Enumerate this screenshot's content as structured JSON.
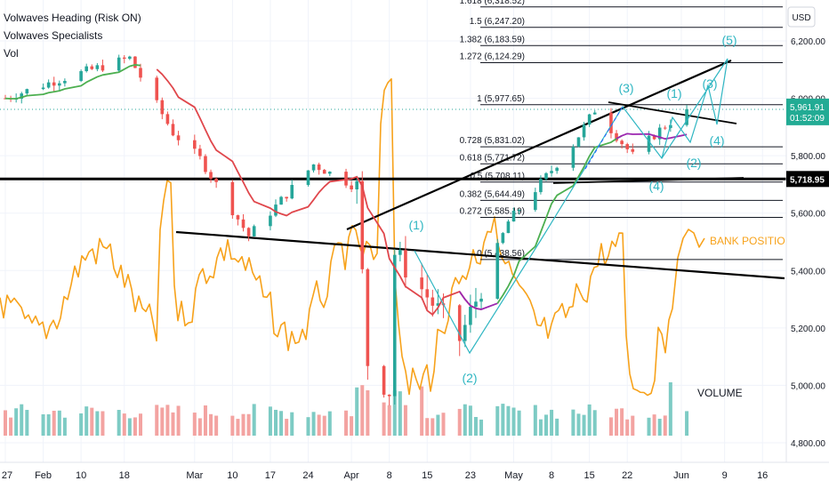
{
  "legend": {
    "line1": "Volwaves Heading (Risk ON)",
    "line2": "Volwaves Specialists",
    "line3": "Vol"
  },
  "price_axis": {
    "currency": "USD",
    "ticks": [
      "6,200.00",
      "6,000.00",
      "5,800.00",
      "5,600.00",
      "5,400.00",
      "5,200.00",
      "5,000.00",
      "4,800.00"
    ],
    "last_price": "5,961.91",
    "countdown": "01:52:09",
    "level_price": "5,718.95",
    "last_price_color": "#22ab94"
  },
  "time_axis": {
    "ticks": [
      "27",
      "Feb",
      "10",
      "18",
      "Mar",
      "10",
      "17",
      "24",
      "Apr",
      "8",
      "15",
      "23",
      "May",
      "8",
      "15",
      "22",
      "Jun",
      "9",
      "16"
    ]
  },
  "fib_levels": [
    {
      "label": "1.618 (6,318.52)",
      "price": 6318.52
    },
    {
      "label": "1.5 (6,247.20)",
      "price": 6247.2
    },
    {
      "label": "1.382 (6,183.59)",
      "price": 6183.59
    },
    {
      "label": "1.272 (6,124.29)",
      "price": 6124.29
    },
    {
      "label": "1 (5,977.65)",
      "price": 5977.65
    },
    {
      "label": "0.728 (5,831.02)",
      "price": 5831.02
    },
    {
      "label": "0.618 (5,771.72)",
      "price": 5771.72
    },
    {
      "label": "0.5 (5,708.11)",
      "price": 5708.11
    },
    {
      "label": "0.382 (5,644.49)",
      "price": 5644.49
    },
    {
      "label": "0.272 (5,585.19)",
      "price": 5585.19
    },
    {
      "label": "0 (5,438.56)",
      "price": 5438.56
    }
  ],
  "wave_labels": [
    "(1)",
    "(2)",
    "(3)",
    "(4)",
    "(1)",
    "(2)",
    "(3)",
    "(4)",
    "(5)"
  ],
  "annotations": {
    "bank_positions": "BANK POSITIONS",
    "volume": "VOLUME"
  },
  "colors": {
    "up_candle": "#26a69a",
    "down_candle": "#ef5350",
    "ma_green": "#4caf50",
    "ma_red": "#e0474c",
    "ma_purple": "#9c27b0",
    "bank_line": "#f7a21b",
    "wave_label": "#2fb6c2",
    "vol_up": "#7dcbc4",
    "vol_down": "#f3a3a1"
  },
  "chart_data": {
    "type": "candlestick",
    "x_range": [
      "2025-01-27",
      "2025-06-16"
    ],
    "ylim": [
      4700,
      6300
    ],
    "close_path": [
      {
        "date": "2025-01-27",
        "close": 6000
      },
      {
        "date": "2025-02-05",
        "close": 6060
      },
      {
        "date": "2025-02-19",
        "close": 6140
      },
      {
        "date": "2025-02-27",
        "close": 5880
      },
      {
        "date": "2025-03-04",
        "close": 5790
      },
      {
        "date": "2025-03-10",
        "close": 5610
      },
      {
        "date": "2025-03-13",
        "close": 5520
      },
      {
        "date": "2025-03-25",
        "close": 5770
      },
      {
        "date": "2025-04-02",
        "close": 5690
      },
      {
        "date": "2025-04-04",
        "close": 5080
      },
      {
        "date": "2025-04-08",
        "close": 4980
      },
      {
        "date": "2025-04-09",
        "close": 5460
      },
      {
        "date": "2025-04-21",
        "close": 5160
      },
      {
        "date": "2025-04-30",
        "close": 5570
      },
      {
        "date": "2025-05-12",
        "close": 5840
      },
      {
        "date": "2025-05-16",
        "close": 5960
      },
      {
        "date": "2025-05-23",
        "close": 5800
      },
      {
        "date": "2025-05-28",
        "close": 5890
      },
      {
        "date": "2025-06-02",
        "close": 5961.91
      }
    ],
    "level_line": 5718.95
  }
}
